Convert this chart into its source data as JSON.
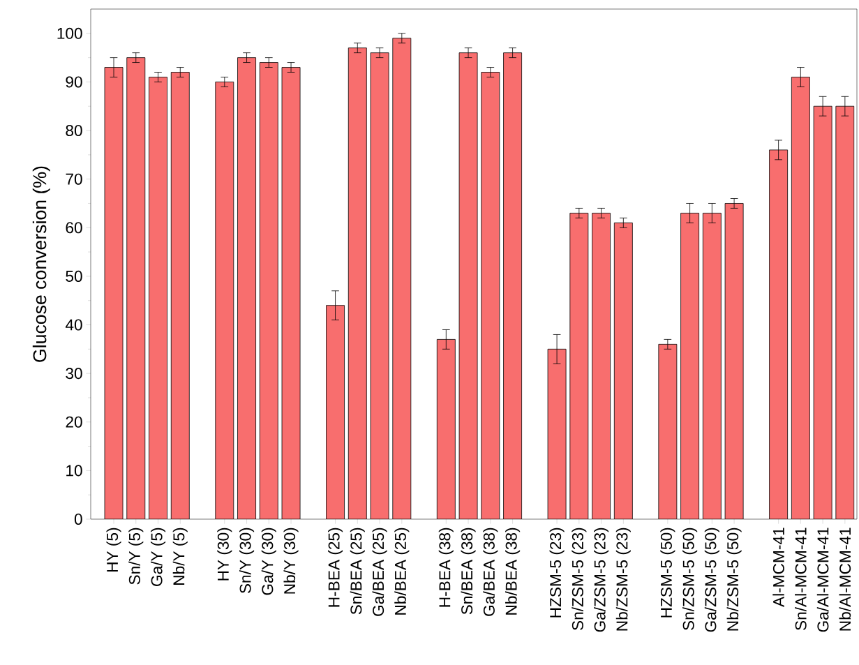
{
  "chart_data": {
    "type": "bar",
    "ylabel": "Glucose conversion (%)",
    "categories": [
      "HY (5)",
      "Sn/Y (5)",
      "Ga/Y (5)",
      "Nb/Y (5)",
      null,
      "HY (30)",
      "Sn/Y (30)",
      "Ga/Y (30)",
      "Nb/Y (30)",
      null,
      "H-BEA (25)",
      "Sn/BEA (25)",
      "Ga/BEA (25)",
      "Nb/BEA (25)",
      null,
      "H-BEA (38)",
      "Sn/BEA (38)",
      "Ga/BEA (38)",
      "Nb/BEA (38)",
      null,
      "HZSM-5 (23)",
      "Sn/ZSM-5 (23)",
      "Ga/ZSM-5 (23)",
      "Nb/ZSM-5 (23)",
      null,
      "HZSM-5 (50)",
      "Sn/ZSM-5 (50)",
      "Ga/ZSM-5 (50)",
      "Nb/ZSM-5 (50)",
      null,
      "Al-MCM-41",
      "Sn/Al-MCM-41",
      "Ga/Al-MCM-41",
      "Nb/Al-MCM-41"
    ],
    "values": [
      93,
      95,
      91,
      92,
      null,
      90,
      95,
      94,
      93,
      null,
      44,
      97,
      96,
      99,
      null,
      37,
      96,
      92,
      96,
      null,
      35,
      63,
      63,
      61,
      null,
      36,
      63,
      63,
      65,
      null,
      76,
      91,
      85,
      85
    ],
    "errors": [
      2,
      1,
      1,
      1,
      null,
      1,
      1,
      1,
      1,
      null,
      3,
      1,
      1,
      1,
      null,
      2,
      1,
      1,
      1,
      null,
      3,
      1,
      1,
      1,
      null,
      1,
      2,
      2,
      1,
      null,
      2,
      2,
      2,
      2
    ],
    "color": "#f86e6e",
    "ylim": [
      0,
      105
    ],
    "yticks": [
      0,
      10,
      20,
      30,
      40,
      50,
      60,
      70,
      80,
      90,
      100
    ]
  }
}
